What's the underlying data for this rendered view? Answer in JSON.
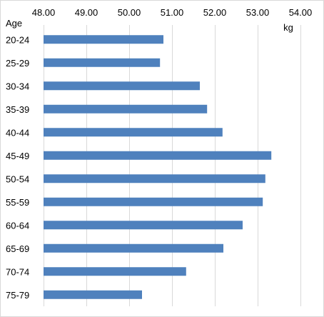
{
  "chart_data": {
    "type": "bar",
    "orientation": "horizontal",
    "title": "",
    "xlabel": "kg",
    "ylabel": "Age",
    "xlim": [
      48.0,
      54.0
    ],
    "x_ticks": [
      "48.00",
      "49.00",
      "50.00",
      "51.00",
      "52.00",
      "53.00",
      "54.00"
    ],
    "x_tick_values": [
      48,
      49,
      50,
      51,
      52,
      53,
      54
    ],
    "x_axis_position": "top",
    "grid": true,
    "legend": "none",
    "categories": [
      "20-24",
      "25-29",
      "30-34",
      "35-39",
      "40-44",
      "45-49",
      "50-54",
      "55-59",
      "60-64",
      "65-69",
      "70-74",
      "75-79"
    ],
    "values": [
      50.8,
      50.72,
      51.65,
      51.82,
      52.18,
      53.32,
      53.18,
      53.12,
      52.65,
      52.2,
      51.33,
      50.3
    ],
    "bar_color": "#4f81bd"
  }
}
